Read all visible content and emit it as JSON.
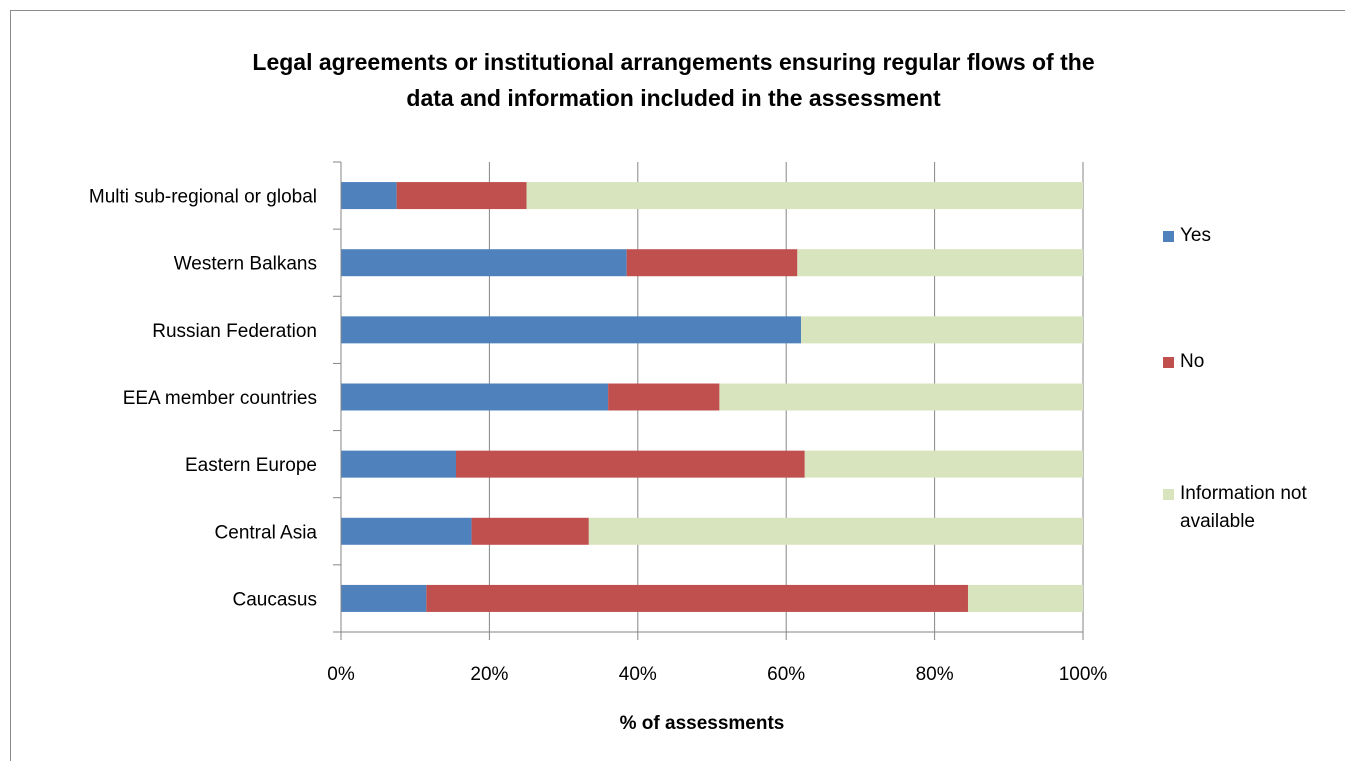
{
  "chart_data": {
    "type": "bar",
    "orientation": "horizontal",
    "stacked": "percent",
    "title": "Legal agreements or institutional arrangements ensuring regular flows of the\ndata and information included in the assessment",
    "xlabel": "% of assessments",
    "ylabel": "",
    "xlim": [
      0,
      100
    ],
    "x_ticks": [
      "0%",
      "20%",
      "40%",
      "60%",
      "80%",
      "100%"
    ],
    "x_tick_values": [
      0,
      20,
      40,
      60,
      80,
      100
    ],
    "grid": "vertical major gridlines",
    "legend_position": "right",
    "categories": [
      "Multi sub-regional or global",
      "Western Balkans",
      "Russian Federation",
      "EEA member countries",
      "Eastern Europe",
      "Central Asia",
      "Caucasus"
    ],
    "series": [
      {
        "name": "Yes",
        "color": "#4f81bd",
        "values": [
          7.5,
          38.5,
          62,
          36,
          15.5,
          17.6,
          11.5
        ]
      },
      {
        "name": "No",
        "color": "#c0504d",
        "values": [
          17.5,
          23,
          0,
          15,
          47,
          15.8,
          73
        ]
      },
      {
        "name": "Information not available",
        "color": "#d7e4bd",
        "values": [
          75,
          38.5,
          38,
          49,
          37.5,
          66.6,
          15.5
        ]
      }
    ]
  },
  "legend": {
    "items": [
      {
        "label": "Yes",
        "color": "#4f81bd"
      },
      {
        "label": "No",
        "color": "#c0504d"
      },
      {
        "label": "Information not available",
        "color": "#d7e4bd"
      }
    ]
  }
}
